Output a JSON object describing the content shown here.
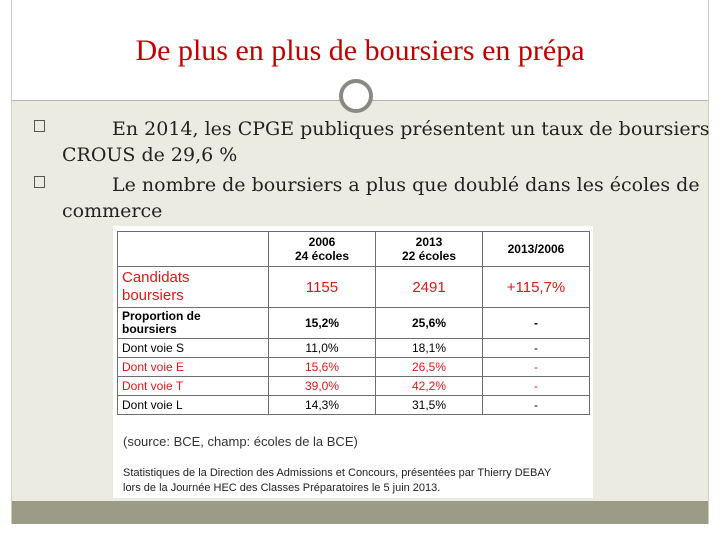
{
  "slide": {
    "title": "De plus en plus de boursiers en prépa",
    "bullets": [
      {
        "line1": "En 2014, les CPGE publiques présentent un taux de boursiers",
        "line2": "CROUS de 29,6 %"
      },
      {
        "line1": "Le nombre de boursiers a plus que doublé dans les écoles de",
        "line2": "commerce"
      }
    ]
  },
  "table": {
    "header": [
      {
        "year": "2006",
        "sub": "24 écoles"
      },
      {
        "year": "2013",
        "sub": "22 écoles"
      },
      {
        "year": "2013/2006",
        "sub": ""
      }
    ],
    "rows": [
      {
        "label1": "Candidats",
        "label2": "boursiers",
        "v2006": "1155",
        "v2013": "2491",
        "ratio": "+115,7%"
      },
      {
        "label1": "Proportion de",
        "label2": "boursiers",
        "v2006": "15,2%",
        "v2013": "25,6%",
        "ratio": "-"
      },
      {
        "label1": "Dont voie S",
        "v2006": "11,0%",
        "v2013": "18,1%",
        "ratio": "-"
      },
      {
        "label1": "Dont voie E",
        "v2006": "15,6%",
        "v2013": "26,5%",
        "ratio": "-"
      },
      {
        "label1": "Dont voie T",
        "v2006": "39,0%",
        "v2013": "42,2%",
        "ratio": "-"
      },
      {
        "label1": "Dont voie L",
        "v2006": "14,3%",
        "v2013": "31,5%",
        "ratio": "-"
      }
    ],
    "source": "(source: BCE, champ: écoles de la BCE)",
    "credit_line1": "Statistiques de la Direction des Admissions et Concours, présentées par Thierry DEBAY",
    "credit_line2": "lors de la Journée HEC des Classes Préparatoires le 5 juin 2013."
  },
  "colors": {
    "title": "#c00000",
    "highlight": "#d81a1a",
    "band": "#ecebe2",
    "footer": "#9c9b86"
  }
}
